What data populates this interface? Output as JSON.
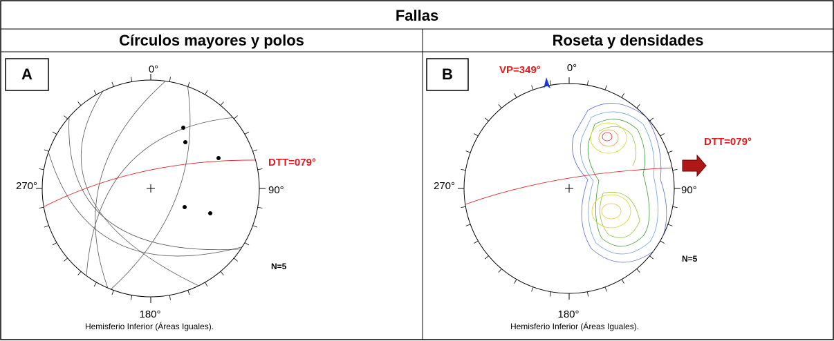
{
  "title": "Fallas",
  "panels": [
    {
      "header": "Círculos mayores y polos",
      "label": "A",
      "directions": [
        "0°",
        "90°",
        "180°",
        "270°"
      ],
      "dtt": "DTT=079°",
      "n": "N=5",
      "caption": "Hemisferio Inferior (Áreas Iguales)."
    },
    {
      "header": "Roseta y densidades",
      "label": "B",
      "directions": [
        "0°",
        "90°",
        "180°",
        "270°"
      ],
      "vp": "VP=349°",
      "dtt": "DTT=079°",
      "n": "N=5",
      "caption": "Hemisferio Inferior (Áreas Iguales)."
    }
  ]
}
